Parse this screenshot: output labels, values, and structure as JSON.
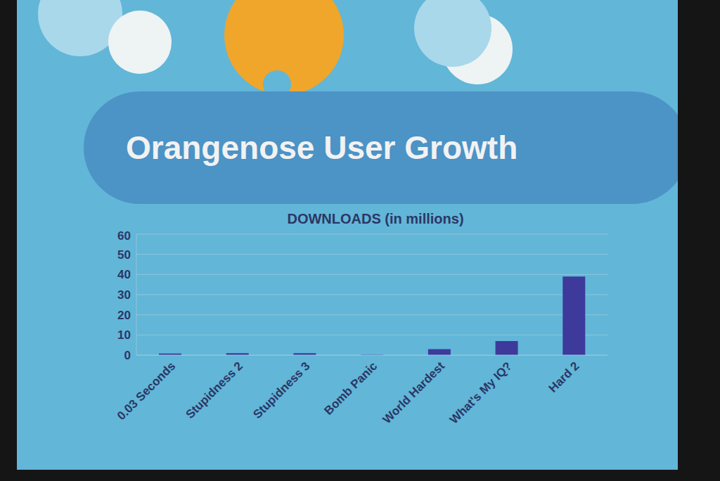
{
  "chart_data": {
    "type": "bar",
    "title": "Orangenose User Growth",
    "subtitle": "DOWNLOADS (in millions)",
    "categories": [
      "0.03 Seconds",
      "Stupidness 2",
      "Stupidness 3",
      "Bomb Panic",
      "World Hardest",
      "What's My IQ?",
      "Hard 2"
    ],
    "values": [
      0.8,
      1,
      1,
      0.3,
      3,
      7,
      39
    ],
    "color": "#3d3a9c",
    "ylim": [
      0,
      60
    ],
    "yticks": [
      0,
      10,
      20,
      30,
      40,
      50,
      60
    ],
    "grid": true
  }
}
